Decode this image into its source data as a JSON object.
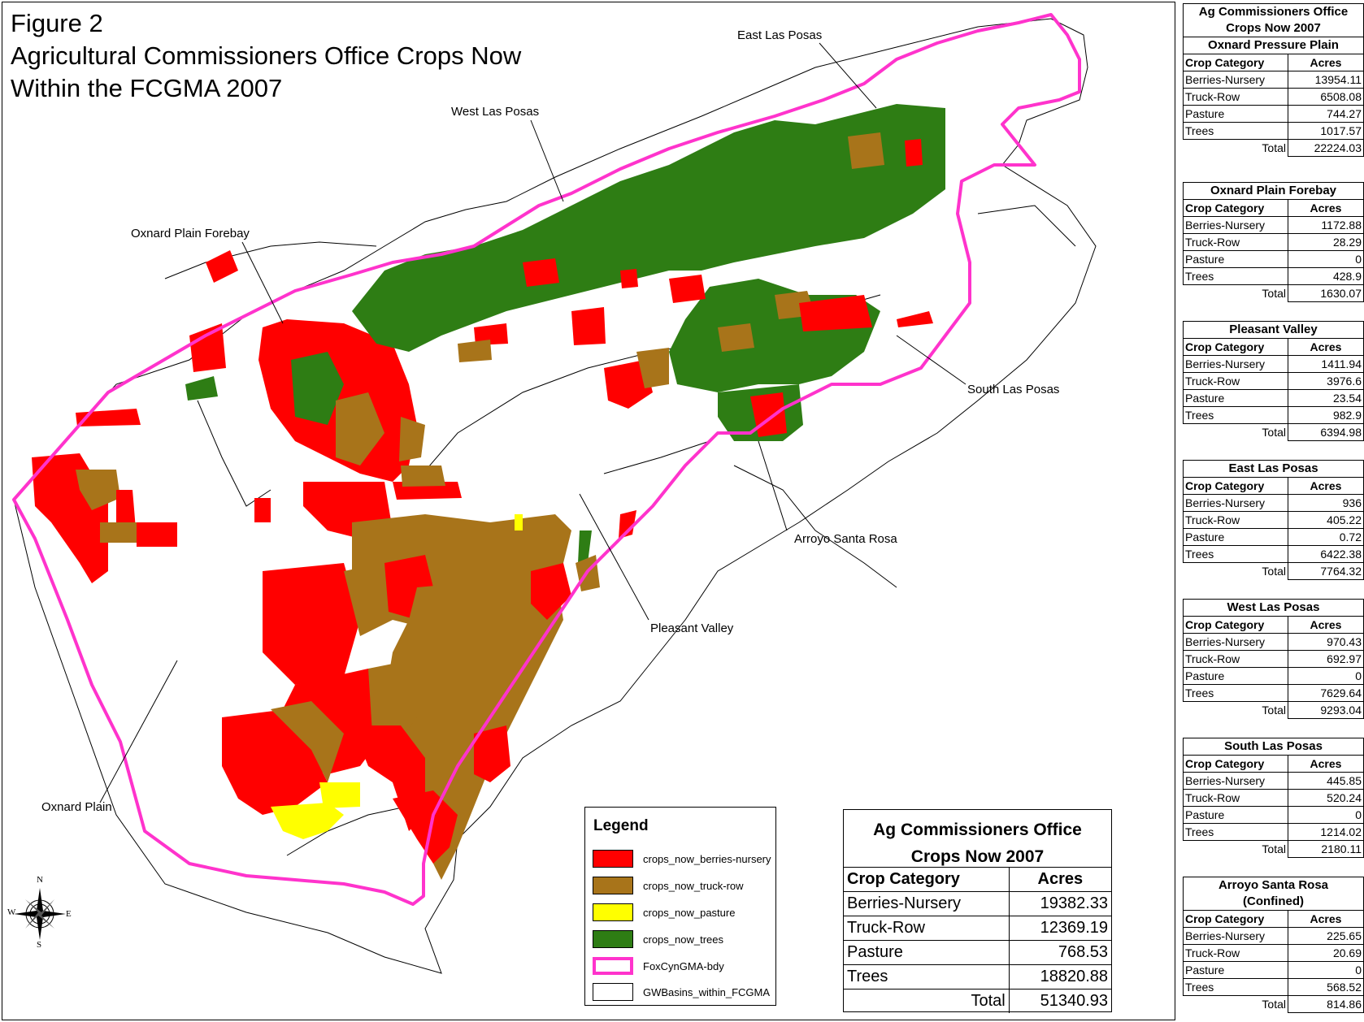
{
  "figure": {
    "title_lines": [
      "Figure 2",
      "Agricultural Commissioners Office Crops Now",
      "Within the FCGMA 2007"
    ]
  },
  "map_labels": {
    "east_las_posas": "East Las Posas",
    "west_las_posas": "West Las Posas",
    "oxnard_plain_forebay": "Oxnard Plain Forebay",
    "south_las_posas": "South Las Posas",
    "arroyo_santa_rosa": "Arroyo Santa Rosa",
    "pleasant_valley": "Pleasant Valley",
    "oxnard_plain": "Oxnard Plain"
  },
  "compass": {
    "n": "N",
    "s": "S",
    "e": "E",
    "w": "W"
  },
  "colors": {
    "berries_nursery": "#ff0000",
    "truck_row": "#a8741a",
    "pasture": "#ffff00",
    "trees": "#2e7d14",
    "boundary": "#ff33cc",
    "basin_outline": "#000000"
  },
  "legend": {
    "title": "Legend",
    "items": [
      {
        "label": "crops_now_berries-nursery",
        "color": "#ff0000",
        "kind": "fill"
      },
      {
        "label": "crops_now_truck-row",
        "color": "#a8741a",
        "kind": "fill"
      },
      {
        "label": "crops_now_pasture",
        "color": "#ffff00",
        "kind": "fill"
      },
      {
        "label": "crops_now_trees",
        "color": "#2e7d14",
        "kind": "fill"
      },
      {
        "label": "FoxCynGMA-bdy",
        "color": "#ff33cc",
        "kind": "outline"
      },
      {
        "label": "GWBasins_within_FCGMA",
        "color": "#ffffff",
        "kind": "fill"
      }
    ]
  },
  "main_table": {
    "title_lines": [
      "Ag Commissioners Office",
      "Crops Now 2007"
    ],
    "header": [
      "Crop Category",
      "Acres"
    ],
    "rows": [
      [
        "Berries-Nursery",
        "19382.33"
      ],
      [
        "Truck-Row",
        "12369.19"
      ],
      [
        "Pasture",
        "768.53"
      ],
      [
        "Trees",
        "18820.88"
      ]
    ],
    "total_label": "Total",
    "total_value": "51340.93"
  },
  "side_tables": [
    {
      "top_title_lines": [
        "Ag Commissioners Office",
        "Crops Now 2007"
      ],
      "title_lines": [
        "Oxnard Pressure Plain"
      ],
      "header": [
        "Crop Category",
        "Acres"
      ],
      "rows": [
        [
          "Berries-Nursery",
          "13954.11"
        ],
        [
          "Truck-Row",
          "6508.08"
        ],
        [
          "Pasture",
          "744.27"
        ],
        [
          "Trees",
          "1017.57"
        ]
      ],
      "total_label": "Total",
      "total_value": "22224.03"
    },
    {
      "title_lines": [
        "Oxnard Plain Forebay"
      ],
      "header": [
        "Crop Category",
        "Acres"
      ],
      "rows": [
        [
          "Berries-Nursery",
          "1172.88"
        ],
        [
          "Truck-Row",
          "28.29"
        ],
        [
          "Pasture",
          "0"
        ],
        [
          "Trees",
          "428.9"
        ]
      ],
      "total_label": "Total",
      "total_value": "1630.07"
    },
    {
      "title_lines": [
        "Pleasant Valley"
      ],
      "header": [
        "Crop Category",
        "Acres"
      ],
      "rows": [
        [
          "Berries-Nursery",
          "1411.94"
        ],
        [
          "Truck-Row",
          "3976.6"
        ],
        [
          "Pasture",
          "23.54"
        ],
        [
          "Trees",
          "982.9"
        ]
      ],
      "total_label": "Total",
      "total_value": "6394.98"
    },
    {
      "title_lines": [
        "East Las Posas"
      ],
      "header": [
        "Crop Category",
        "Acres"
      ],
      "rows": [
        [
          "Berries-Nursery",
          "936"
        ],
        [
          "Truck-Row",
          "405.22"
        ],
        [
          "Pasture",
          "0.72"
        ],
        [
          "Trees",
          "6422.38"
        ]
      ],
      "total_label": "Total",
      "total_value": "7764.32"
    },
    {
      "title_lines": [
        "West Las Posas"
      ],
      "header": [
        "Crop Category",
        "Acres"
      ],
      "rows": [
        [
          "Berries-Nursery",
          "970.43"
        ],
        [
          "Truck-Row",
          "692.97"
        ],
        [
          "Pasture",
          "0"
        ],
        [
          "Trees",
          "7629.64"
        ]
      ],
      "total_label": "Total",
      "total_value": "9293.04"
    },
    {
      "title_lines": [
        "South Las Posas"
      ],
      "header": [
        "Crop Category",
        "Acres"
      ],
      "rows": [
        [
          "Berries-Nursery",
          "445.85"
        ],
        [
          "Truck-Row",
          "520.24"
        ],
        [
          "Pasture",
          "0"
        ],
        [
          "Trees",
          "1214.02"
        ]
      ],
      "total_label": "Total",
      "total_value": "2180.11"
    },
    {
      "title_lines": [
        "Arroyo Santa Rosa",
        "(Confined)"
      ],
      "header": [
        "Crop Category",
        "Acres"
      ],
      "rows": [
        [
          "Berries-Nursery",
          "225.65"
        ],
        [
          "Truck-Row",
          "20.69"
        ],
        [
          "Pasture",
          "0"
        ],
        [
          "Trees",
          "568.52"
        ]
      ],
      "total_label": "Total",
      "total_value": "814.86"
    }
  ]
}
